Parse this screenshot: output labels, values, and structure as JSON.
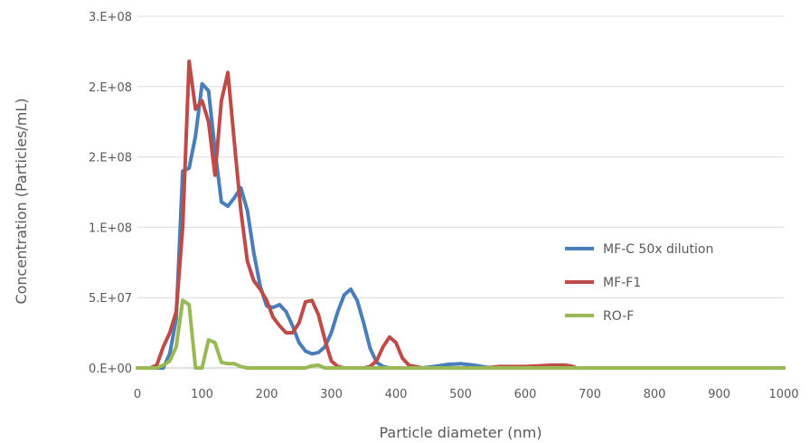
{
  "chart_data": {
    "type": "line",
    "xlabel": "Particle diameter (nm)",
    "ylabel": "Concentration  (Particles/mL)",
    "xlim": [
      0,
      1000
    ],
    "ylim": [
      0,
      250000000
    ],
    "x_ticks": [
      0,
      100,
      200,
      300,
      400,
      500,
      600,
      700,
      800,
      900,
      1000
    ],
    "x_tick_labels": [
      "0",
      "100",
      "200",
      "300",
      "400",
      "500",
      "600",
      "700",
      "800",
      "900",
      "1000"
    ],
    "y_ticks": [
      0,
      50000000,
      100000000,
      150000000,
      200000000,
      250000000
    ],
    "y_tick_labels": [
      "0.E+00",
      "5.E+07",
      "1.E+08",
      "2.E+08",
      "2.E+08",
      "3.E+08"
    ],
    "grid": true,
    "legend_position": "right",
    "series": [
      {
        "name": "MF-C 50x dilution",
        "color": "#4a7ebb",
        "x": [
          0,
          20,
          40,
          50,
          60,
          70,
          80,
          90,
          100,
          110,
          120,
          130,
          140,
          150,
          160,
          170,
          180,
          190,
          200,
          210,
          220,
          230,
          240,
          250,
          260,
          270,
          280,
          290,
          300,
          310,
          320,
          330,
          340,
          350,
          360,
          370,
          380,
          390,
          400,
          420,
          440,
          460,
          480,
          500,
          520,
          540,
          560,
          580,
          600,
          650,
          700,
          800,
          900,
          1000
        ],
        "y": [
          0,
          0,
          0,
          10000000,
          35000000,
          140000000,
          142000000,
          165000000,
          202000000,
          197000000,
          155000000,
          118000000,
          115000000,
          121000000,
          128000000,
          112000000,
          82000000,
          58000000,
          44000000,
          43000000,
          45000000,
          40000000,
          30000000,
          18000000,
          12000000,
          10000000,
          11000000,
          15000000,
          25000000,
          40000000,
          52000000,
          56000000,
          48000000,
          32000000,
          14000000,
          4000000,
          1000000,
          0,
          0,
          0,
          0,
          1000000,
          2500000,
          3000000,
          2000000,
          500000,
          0,
          0,
          0,
          0,
          0,
          0,
          0,
          0
        ]
      },
      {
        "name": "MF-F1",
        "color": "#be4b48",
        "x": [
          0,
          20,
          30,
          40,
          50,
          60,
          70,
          80,
          90,
          100,
          110,
          120,
          130,
          140,
          150,
          160,
          170,
          180,
          190,
          200,
          210,
          220,
          230,
          240,
          250,
          260,
          270,
          280,
          290,
          300,
          310,
          320,
          330,
          340,
          350,
          360,
          370,
          380,
          390,
          400,
          410,
          420,
          440,
          460,
          500,
          540,
          560,
          580,
          600,
          620,
          640,
          660,
          670,
          680,
          700,
          800,
          900,
          1000
        ],
        "y": [
          0,
          0,
          2000000,
          15000000,
          25000000,
          40000000,
          100000000,
          218000000,
          184000000,
          190000000,
          175000000,
          137000000,
          190000000,
          210000000,
          160000000,
          112000000,
          76000000,
          62000000,
          56000000,
          48000000,
          36000000,
          30000000,
          25000000,
          25000000,
          32000000,
          47000000,
          48000000,
          38000000,
          20000000,
          5000000,
          1000000,
          0,
          0,
          0,
          0,
          1000000,
          5000000,
          15000000,
          22000000,
          18000000,
          7000000,
          2000000,
          0,
          0,
          0,
          0,
          1000000,
          1000000,
          1000000,
          1500000,
          2000000,
          2000000,
          1500000,
          0,
          0,
          0,
          0,
          0
        ]
      },
      {
        "name": "RO-F",
        "color": "#98b954",
        "x": [
          0,
          30,
          40,
          50,
          60,
          70,
          80,
          90,
          100,
          110,
          120,
          130,
          140,
          150,
          160,
          170,
          180,
          190,
          200,
          260,
          270,
          280,
          290,
          300,
          400,
          500,
          600,
          700,
          800,
          900,
          1000
        ],
        "y": [
          0,
          0,
          2000000,
          5000000,
          15000000,
          48000000,
          45000000,
          0,
          0,
          20000000,
          18000000,
          4000000,
          3000000,
          3000000,
          1000000,
          0,
          0,
          0,
          0,
          0,
          1500000,
          2000000,
          0,
          0,
          0,
          0,
          0,
          0,
          0,
          0,
          0
        ]
      }
    ]
  }
}
